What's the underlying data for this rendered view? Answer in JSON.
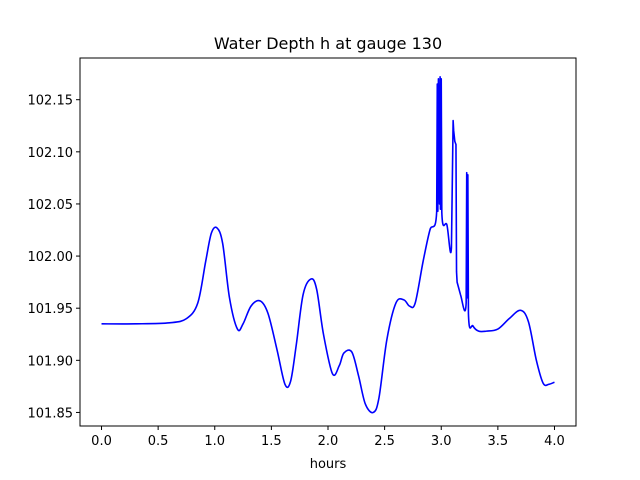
{
  "chart_data": {
    "type": "line",
    "title": "Water Depth h at gauge 130",
    "xlabel": "hours",
    "ylabel": "",
    "xlim": [
      -0.19,
      4.19
    ],
    "ylim": [
      101.837,
      102.19
    ],
    "xticks": [
      0.0,
      0.5,
      1.0,
      1.5,
      2.0,
      2.5,
      3.0,
      3.5,
      4.0
    ],
    "xtick_labels": [
      "0.0",
      "0.5",
      "1.0",
      "1.5",
      "2.0",
      "2.5",
      "3.0",
      "3.5",
      "4.0"
    ],
    "yticks": [
      101.85,
      101.9,
      101.95,
      102.0,
      102.05,
      102.1,
      102.15
    ],
    "ytick_labels": [
      "101.85",
      "101.90",
      "101.95",
      "102.00",
      "102.05",
      "102.10",
      "102.15"
    ],
    "grid": false,
    "series": [
      {
        "color": "#0000ff",
        "x": [
          0.0,
          0.3,
          0.6,
          0.75,
          0.85,
          0.92,
          0.97,
          1.02,
          1.07,
          1.13,
          1.2,
          1.25,
          1.32,
          1.4,
          1.47,
          1.55,
          1.62,
          1.67,
          1.72,
          1.78,
          1.85,
          1.9,
          1.96,
          2.04,
          2.1,
          2.14,
          2.21,
          2.27,
          2.33,
          2.4,
          2.45,
          2.52,
          2.6,
          2.67,
          2.72,
          2.77,
          2.84,
          2.9,
          2.96,
          2.965,
          2.97,
          2.975,
          2.985,
          2.99,
          2.993,
          3.0,
          3.005,
          3.05,
          3.09,
          3.105,
          3.11,
          3.12,
          3.13,
          3.135,
          3.14,
          3.17,
          3.22,
          3.225,
          3.23,
          3.235,
          3.24,
          3.28,
          3.33,
          3.4,
          3.5,
          3.6,
          3.7,
          3.77,
          3.84,
          3.9,
          3.95,
          4.0
        ],
        "y": [
          101.935,
          101.935,
          101.936,
          101.94,
          101.955,
          101.995,
          102.022,
          102.027,
          102.012,
          101.96,
          101.93,
          101.935,
          101.952,
          101.957,
          101.945,
          101.91,
          101.877,
          101.88,
          101.915,
          101.963,
          101.978,
          101.968,
          101.925,
          101.887,
          101.895,
          101.907,
          101.908,
          101.885,
          101.858,
          101.85,
          101.864,
          101.92,
          101.955,
          101.958,
          101.952,
          101.955,
          101.995,
          102.025,
          102.043,
          102.165,
          102.043,
          102.17,
          102.05,
          102.172,
          102.045,
          102.17,
          102.042,
          102.03,
          102.008,
          102.13,
          102.12,
          102.11,
          102.107,
          101.985,
          101.975,
          101.963,
          101.955,
          102.08,
          101.96,
          102.078,
          101.945,
          101.933,
          101.928,
          101.928,
          101.93,
          101.94,
          101.948,
          101.937,
          101.9,
          101.878,
          101.877,
          101.879
        ]
      }
    ]
  }
}
